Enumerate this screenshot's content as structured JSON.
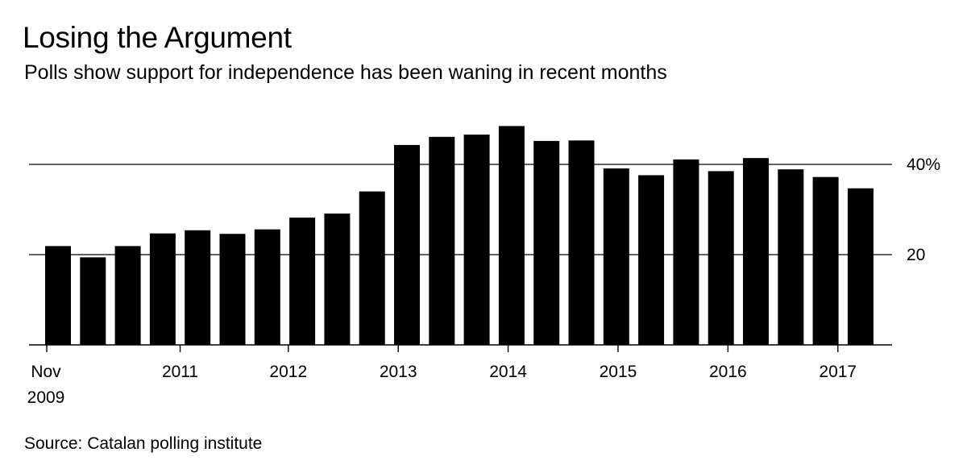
{
  "chart_data": {
    "type": "bar",
    "title": "Losing the Argument",
    "subtitle": "Polls show support for independence has been waning in recent months",
    "source": "Source: Catalan polling institute",
    "ylabel": "",
    "xlabel": "",
    "ylim": [
      0,
      50
    ],
    "yticks": [
      {
        "value": 20,
        "label": "20"
      },
      {
        "value": 40,
        "label": "40%"
      }
    ],
    "xticks": [
      {
        "bar_index": 0,
        "label": "Nov",
        "label2": "2009"
      },
      {
        "bar_index": 3.5,
        "label": "2011"
      },
      {
        "bar_index": 6.6,
        "label": "2012"
      },
      {
        "bar_index": 9.75,
        "label": "2013"
      },
      {
        "bar_index": 12.9,
        "label": "2014"
      },
      {
        "bar_index": 16.05,
        "label": "2015"
      },
      {
        "bar_index": 19.2,
        "label": "2016"
      },
      {
        "bar_index": 22.35,
        "label": "2017"
      }
    ],
    "values": [
      21.9,
      19.4,
      21.9,
      24.7,
      25.4,
      24.6,
      25.6,
      28.2,
      29.1,
      34.0,
      44.3,
      46.1,
      46.6,
      48.5,
      45.2,
      45.3,
      39.1,
      37.6,
      41.1,
      38.5,
      41.4,
      38.9,
      37.2,
      34.7
    ],
    "grid": true
  }
}
